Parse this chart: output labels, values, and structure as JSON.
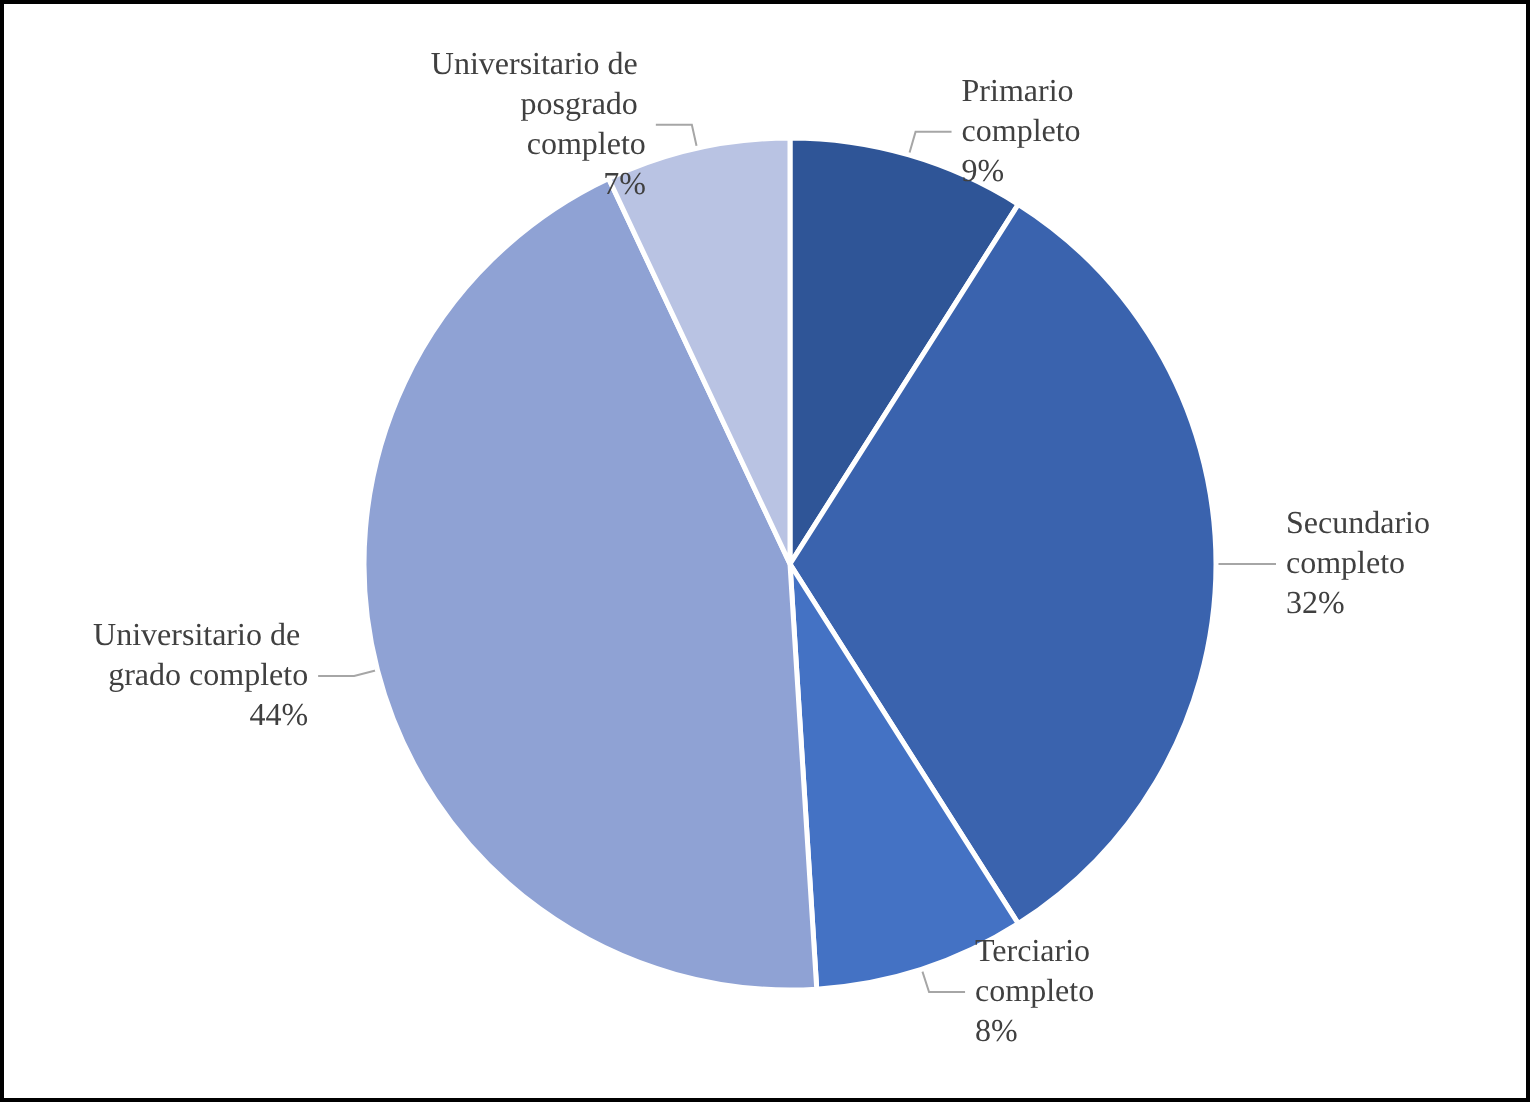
{
  "chart_data": {
    "type": "pie",
    "categories": [
      "Primario completo",
      "Secundario completo",
      "Terciario completo",
      "Universitario de grado completo",
      "Universitario de posgrado completo"
    ],
    "values": [
      9,
      32,
      8,
      44,
      7
    ],
    "colors": [
      "#2f5597",
      "#3a63ae",
      "#4472c4",
      "#8fa2d4",
      "#b9c3e3"
    ],
    "value_labels": [
      "9%",
      "32%",
      "8%",
      "44%",
      "7%"
    ],
    "legend": false
  }
}
